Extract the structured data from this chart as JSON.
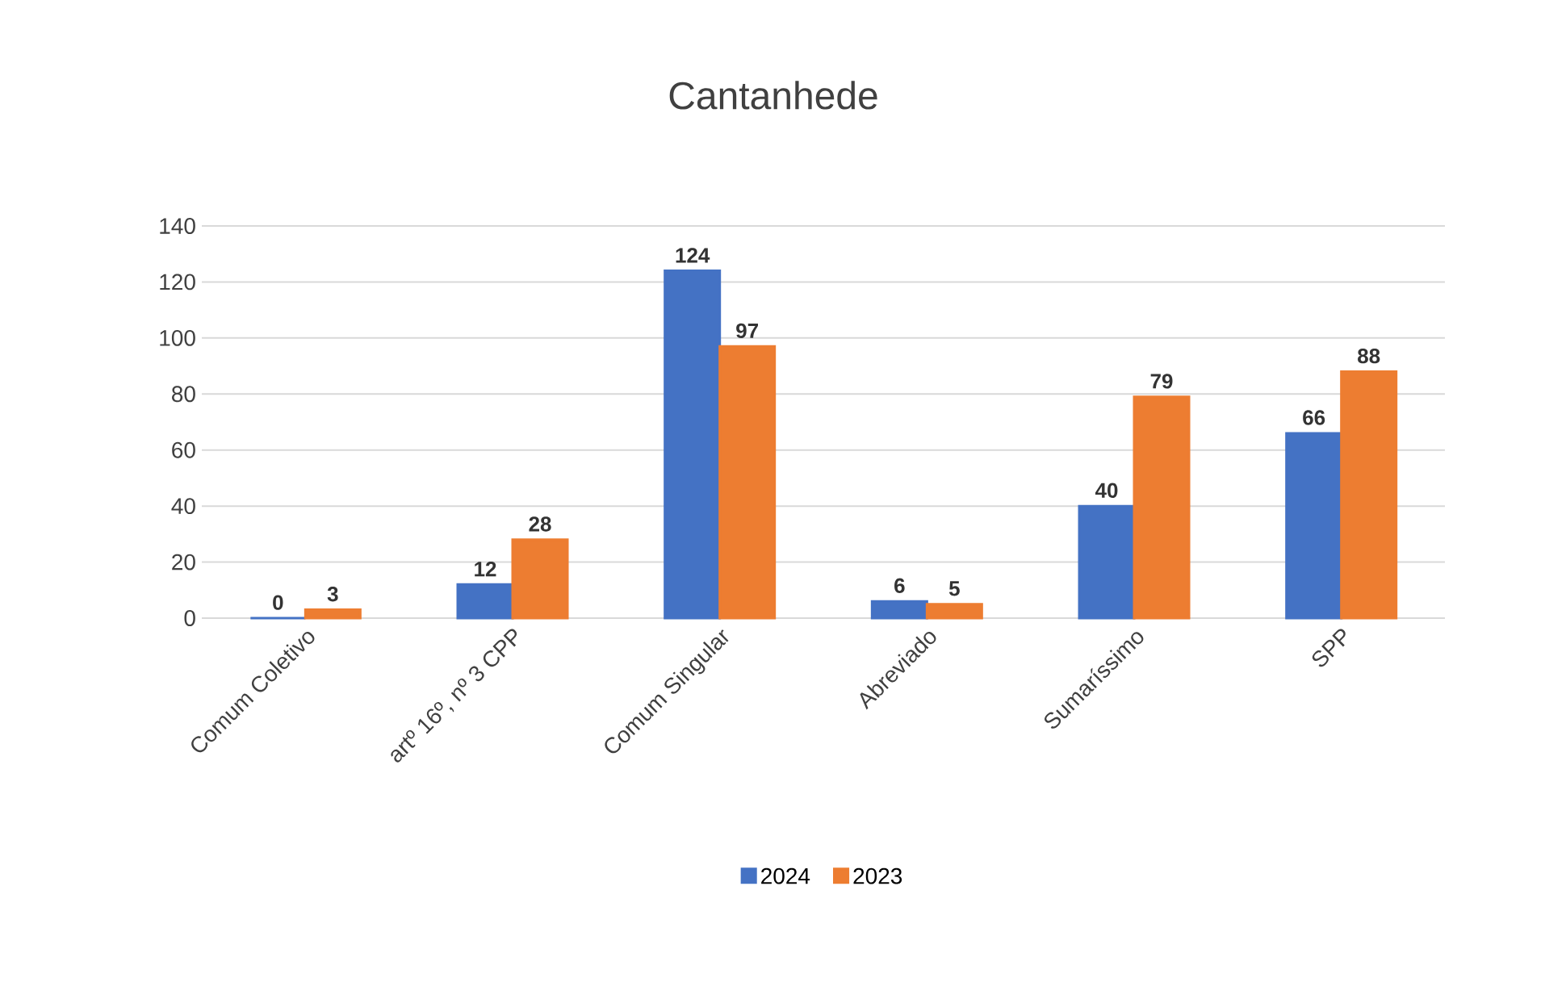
{
  "chart_data": {
    "type": "bar",
    "title": "Cantanhede",
    "categories": [
      "Comum Coletivo",
      "artº 16º, nº 3 CPP",
      "Comum Singular",
      "Abreviado",
      "Sumaríssimo",
      "SPP"
    ],
    "series": [
      {
        "name": "2024",
        "color": "#4472c4",
        "values": [
          0,
          12,
          124,
          6,
          40,
          66
        ]
      },
      {
        "name": "2023",
        "color": "#ed7d31",
        "values": [
          3,
          28,
          97,
          5,
          79,
          88
        ]
      }
    ],
    "ylim": [
      0,
      140
    ],
    "yticks": [
      0,
      20,
      40,
      60,
      80,
      100,
      120,
      140
    ],
    "grid": "y",
    "legend": "bottom",
    "data_labels": true
  }
}
